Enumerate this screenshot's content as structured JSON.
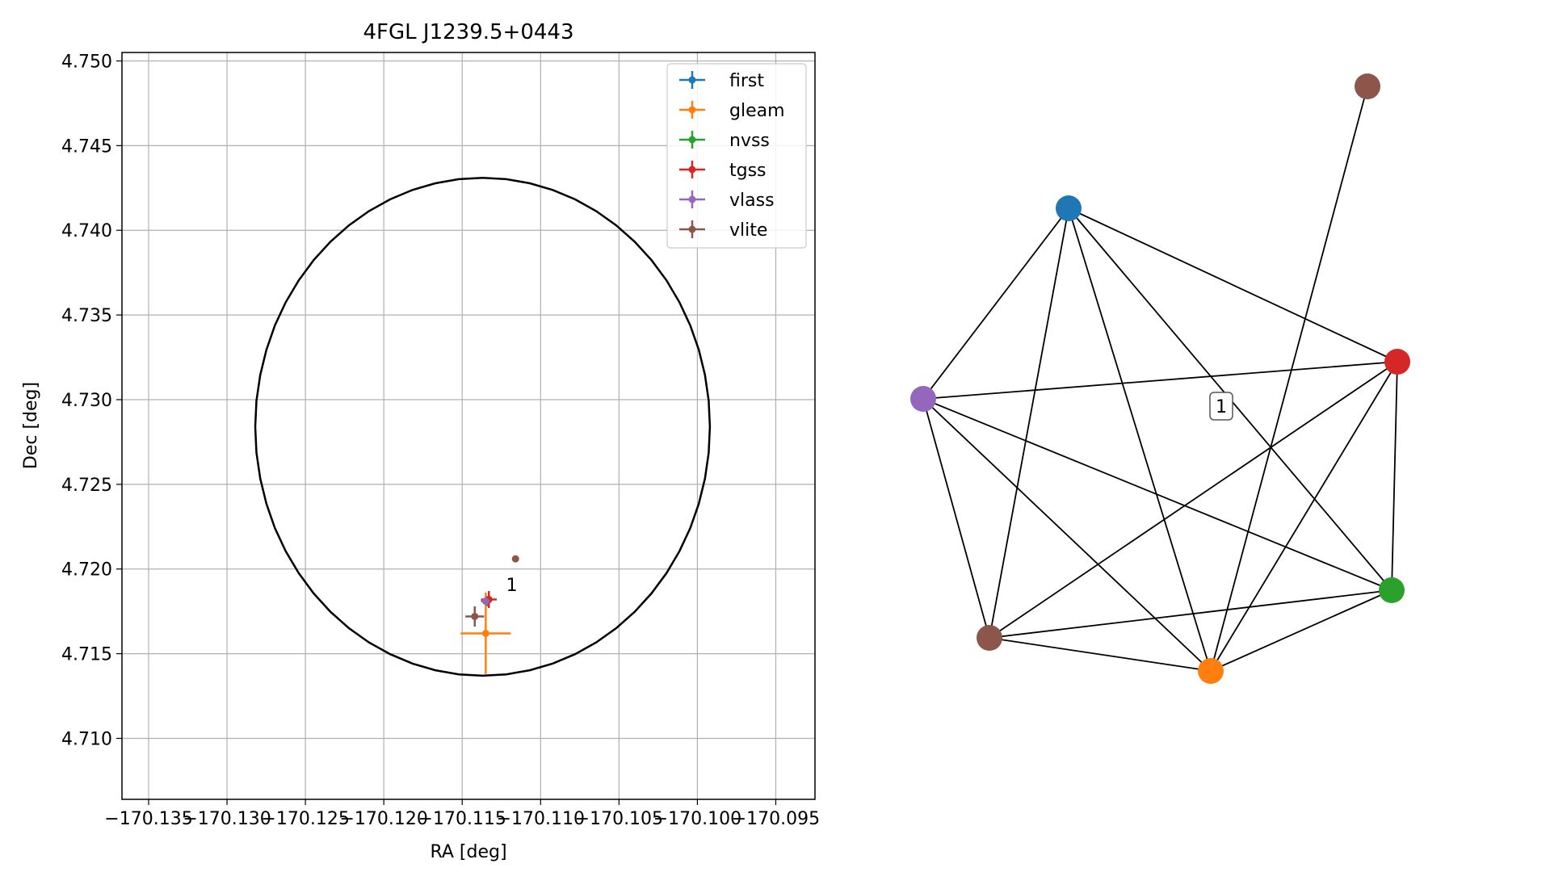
{
  "chart_data": [
    {
      "type": "scatter",
      "title": "4FGL J1239.5+0443",
      "xlabel": "RA [deg]",
      "ylabel": "Dec [deg]",
      "xlim": [
        -170.1367,
        -170.0925
      ],
      "ylim": [
        4.7064,
        4.7505
      ],
      "xticks": [
        -170.135,
        -170.13,
        -170.125,
        -170.12,
        -170.115,
        -170.11,
        -170.105,
        -170.1,
        -170.095
      ],
      "xtick_labels": [
        "−170.135",
        "−170.130",
        "−170.125",
        "−170.120",
        "−170.115",
        "−170.110",
        "−170.105",
        "−170.100",
        "−170.095"
      ],
      "yticks": [
        4.71,
        4.715,
        4.72,
        4.725,
        4.73,
        4.735,
        4.74,
        4.745,
        4.75
      ],
      "ytick_labels": [
        "4.710",
        "4.715",
        "4.720",
        "4.725",
        "4.730",
        "4.735",
        "4.740",
        "4.745",
        "4.750"
      ],
      "grid": true,
      "legend_position": "top-right",
      "ellipse": {
        "center_ra": -170.1137,
        "center_dec": 4.7284,
        "radius_ra": 0.0145,
        "radius_dec": 0.0147,
        "color": "#000000"
      },
      "series": [
        {
          "name": "first",
          "color": "#1f77b4",
          "points": [
            {
              "ra": -170.1135,
              "dec": 4.7181,
              "err_ra": 0.0003,
              "err_dec": 0.0002
            }
          ]
        },
        {
          "name": "gleam",
          "color": "#ff7f0e",
          "points": [
            {
              "ra": -170.1135,
              "dec": 4.7162,
              "err_ra": 0.0016,
              "err_dec": 0.0024
            }
          ]
        },
        {
          "name": "nvss",
          "color": "#2ca02c",
          "points": [
            {
              "ra": -170.1134,
              "dec": 4.7181,
              "err_ra": 0.0002,
              "err_dec": 0.0003
            }
          ]
        },
        {
          "name": "tgss",
          "color": "#d62728",
          "points": [
            {
              "ra": -170.1133,
              "dec": 4.7182,
              "err_ra": 0.0005,
              "err_dec": 0.0005
            }
          ]
        },
        {
          "name": "vlass",
          "color": "#9467bd",
          "points": [
            {
              "ra": -170.1135,
              "dec": 4.7181,
              "err_ra": 0.0002,
              "err_dec": 0.0002
            }
          ]
        },
        {
          "name": "vlite",
          "color": "#8c564b",
          "points": [
            {
              "ra": -170.1142,
              "dec": 4.7172,
              "err_ra": 0.0006,
              "err_dec": 0.0006
            },
            {
              "ra": -170.1116,
              "dec": 4.7206,
              "err_ra": 0.0,
              "err_dec": 0.0
            }
          ]
        }
      ],
      "annotations": [
        {
          "text": "1",
          "ra": -170.1122,
          "dec": 4.7187
        }
      ]
    },
    {
      "type": "network",
      "nodes": [
        {
          "id": "first",
          "color": "#1f77b4"
        },
        {
          "id": "gleam",
          "color": "#ff7f0e"
        },
        {
          "id": "nvss",
          "color": "#2ca02c"
        },
        {
          "id": "tgss",
          "color": "#d62728"
        },
        {
          "id": "vlass",
          "color": "#9467bd"
        },
        {
          "id": "vlite_a",
          "color": "#8c564b"
        },
        {
          "id": "vlite_b",
          "color": "#8c564b"
        }
      ],
      "edges": [
        [
          "first",
          "vlass"
        ],
        [
          "first",
          "vlite_a"
        ],
        [
          "first",
          "gleam"
        ],
        [
          "first",
          "tgss"
        ],
        [
          "first",
          "nvss"
        ],
        [
          "vlass",
          "tgss"
        ],
        [
          "vlass",
          "vlite_a"
        ],
        [
          "vlass",
          "gleam"
        ],
        [
          "vlass",
          "nvss"
        ],
        [
          "vlite_a",
          "gleam"
        ],
        [
          "vlite_a",
          "nvss"
        ],
        [
          "vlite_a",
          "tgss"
        ],
        [
          "gleam",
          "nvss"
        ],
        [
          "gleam",
          "tgss"
        ],
        [
          "gleam",
          "vlite_b"
        ],
        [
          "nvss",
          "tgss"
        ]
      ],
      "cluster_label": "1"
    }
  ]
}
